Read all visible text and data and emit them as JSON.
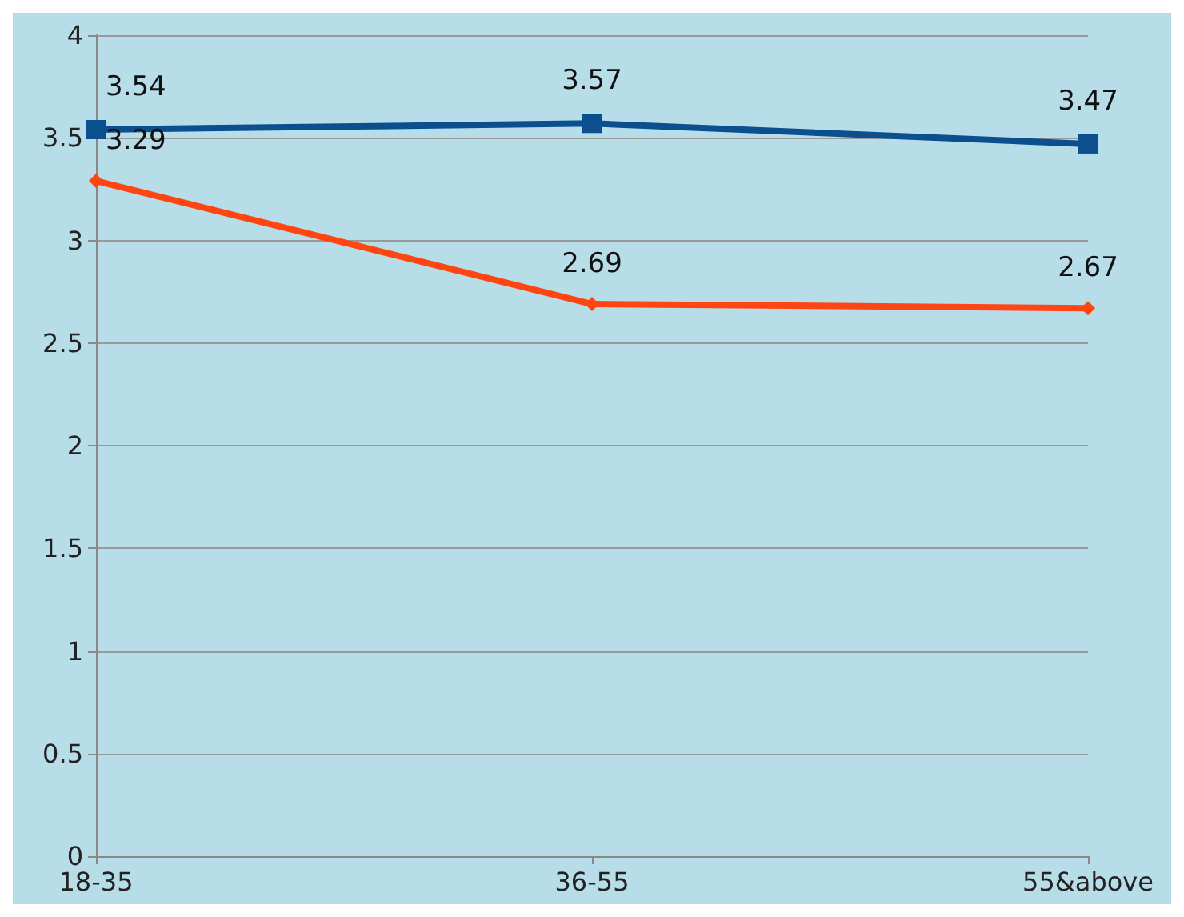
{
  "chart_data": {
    "type": "line",
    "categories": [
      "18-35",
      "36-55",
      "55&above"
    ],
    "series": [
      {
        "color": "#0b4f8e",
        "marker": "square",
        "values": [
          3.54,
          3.57,
          3.47
        ]
      },
      {
        "color": "#ff4512",
        "marker": "diamond",
        "values": [
          3.29,
          2.69,
          2.67
        ]
      }
    ],
    "ylim": [
      0,
      4
    ],
    "yticks": [
      0,
      0.5,
      1,
      1.5,
      2,
      2.5,
      3,
      3.5,
      4
    ],
    "grid": "y",
    "data_labels": true
  }
}
